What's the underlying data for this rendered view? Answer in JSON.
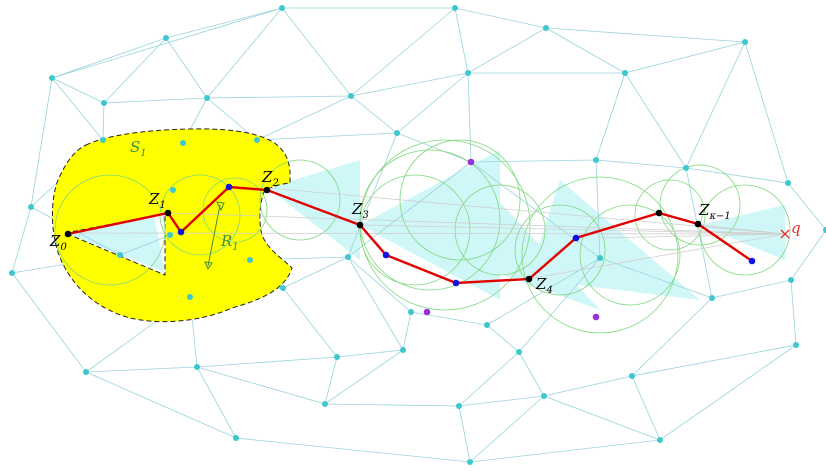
{
  "colors": {
    "mesh_edge": "#99d3dc",
    "mesh_node": "#3cc8cc",
    "region_fill": "#ffff00",
    "region_border": "#222222",
    "path": "#e00000",
    "path_node": "#000000",
    "vertex_blue": "#1010e0",
    "vertex_purple": "#9a30dd",
    "circle": "#7ed87e",
    "cone": "#cff7f7",
    "ray": "#cfcfcf",
    "label_green": "#3f8f3f",
    "label_red": "#e03030"
  },
  "labels": {
    "s1": {
      "main": "S",
      "sub": "1"
    },
    "r1": {
      "main": "R",
      "sub": "1"
    },
    "z0": {
      "main": "Z",
      "sub": "0"
    },
    "z1": {
      "main": "Z",
      "sub": "1"
    },
    "z2": {
      "main": "Z",
      "sub": "2"
    },
    "z3": {
      "main": "Z",
      "sub": "3"
    },
    "z4": {
      "main": "Z",
      "sub": "4"
    },
    "zk": {
      "main": "Z",
      "sub": "κ−1"
    },
    "q": "q"
  }
}
